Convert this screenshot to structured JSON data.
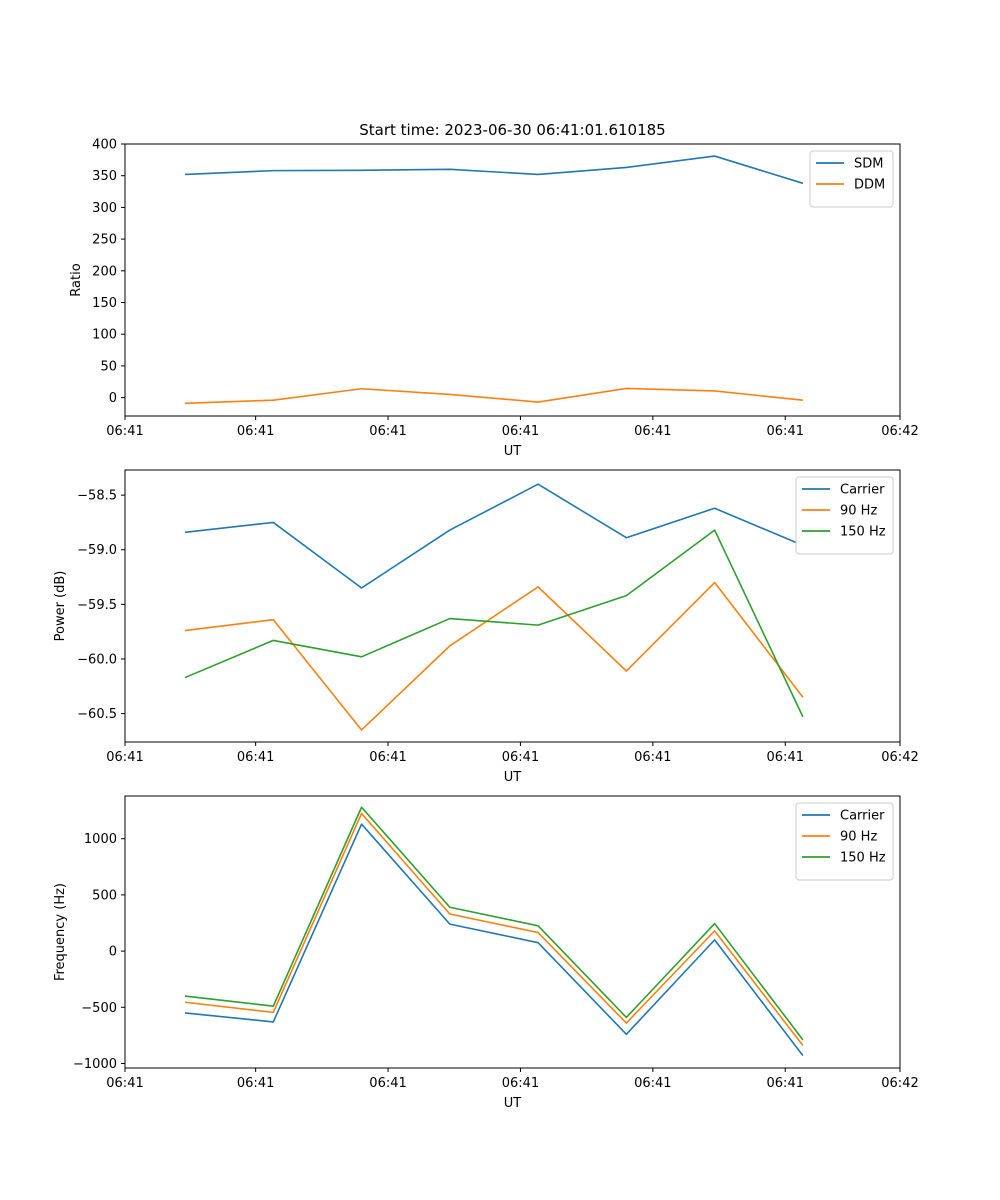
{
  "chart_data": [
    {
      "type": "line",
      "title": "Start time: 2023-06-30 06:41:01.610185",
      "xlabel": "UT",
      "ylabel": "Ratio",
      "x_tick_labels": [
        "06:41",
        "06:41",
        "06:41",
        "06:41",
        "06:41",
        "06:41",
        "06:42"
      ],
      "y_ticks": [
        0,
        50,
        100,
        150,
        200,
        250,
        300,
        350,
        400
      ],
      "y_tick_labels": [
        "0",
        "50",
        "100",
        "150",
        "200",
        "250",
        "300",
        "350",
        "400"
      ],
      "ylim": [
        -29,
        400
      ],
      "x": [
        1,
        2,
        3,
        4,
        5,
        6,
        7,
        8
      ],
      "xlim": [
        0.32,
        9.1
      ],
      "x_tick_positions": [
        0.32,
        1.8,
        3.3,
        4.8,
        6.3,
        7.8,
        9.1
      ],
      "legend_position": "top-right",
      "series": [
        {
          "name": "SDM",
          "color": "#1f77b4",
          "values": [
            352,
            358,
            358.5,
            360,
            352,
            363,
            381,
            338
          ]
        },
        {
          "name": "DDM",
          "color": "#ff7f0e",
          "values": [
            -9,
            -4,
            14,
            5,
            -7,
            14.5,
            10.5,
            -4
          ]
        }
      ]
    },
    {
      "type": "line",
      "title": "",
      "xlabel": "UT",
      "ylabel": "Power (dB)",
      "x_tick_labels": [
        "06:41",
        "06:41",
        "06:41",
        "06:41",
        "06:41",
        "06:41",
        "06:42"
      ],
      "y_ticks": [
        -60.5,
        -60.0,
        -59.5,
        -59.0,
        -58.5
      ],
      "y_tick_labels": [
        "−60.5",
        "−60.0",
        "−59.5",
        "−59.0",
        "−58.5"
      ],
      "ylim": [
        -60.76,
        -58.27
      ],
      "x": [
        1,
        2,
        3,
        4,
        5,
        6,
        7,
        8
      ],
      "xlim": [
        0.32,
        9.1
      ],
      "x_tick_positions": [
        0.32,
        1.8,
        3.3,
        4.8,
        6.3,
        7.8,
        9.1
      ],
      "legend_position": "top-right",
      "series": [
        {
          "name": "Carrier",
          "color": "#1f77b4",
          "values": [
            -58.84,
            -58.75,
            -59.35,
            -58.82,
            -58.4,
            -58.89,
            -58.62,
            -58.96
          ]
        },
        {
          "name": "90 Hz",
          "color": "#ff7f0e",
          "values": [
            -59.74,
            -59.64,
            -60.65,
            -59.88,
            -59.34,
            -60.11,
            -59.3,
            -60.35
          ]
        },
        {
          "name": "150 Hz",
          "color": "#2ca02c",
          "values": [
            -60.17,
            -59.83,
            -59.98,
            -59.63,
            -59.69,
            -59.42,
            -58.82,
            -60.53
          ]
        }
      ]
    },
    {
      "type": "line",
      "title": "",
      "xlabel": "UT",
      "ylabel": "Frequency (Hz)",
      "x_tick_labels": [
        "06:41",
        "06:41",
        "06:41",
        "06:41",
        "06:41",
        "06:41",
        "06:42"
      ],
      "y_ticks": [
        -1000,
        -500,
        0,
        500,
        1000
      ],
      "y_tick_labels": [
        "−1000",
        "−500",
        "0",
        "500",
        "1000"
      ],
      "ylim": [
        -1040,
        1380
      ],
      "x": [
        1,
        2,
        3,
        4,
        5,
        6,
        7,
        8
      ],
      "xlim": [
        0.32,
        9.1
      ],
      "x_tick_positions": [
        0.32,
        1.8,
        3.3,
        4.8,
        6.3,
        7.8,
        9.1
      ],
      "legend_position": "top-right",
      "series": [
        {
          "name": "Carrier",
          "color": "#1f77b4",
          "values": [
            -550,
            -630,
            1130,
            240,
            75,
            -740,
            100,
            -930
          ]
        },
        {
          "name": "90 Hz",
          "color": "#ff7f0e",
          "values": [
            -455,
            -545,
            1225,
            330,
            165,
            -640,
            180,
            -840
          ]
        },
        {
          "name": "150 Hz",
          "color": "#2ca02c",
          "values": [
            -400,
            -490,
            1280,
            390,
            225,
            -590,
            245,
            -790
          ]
        }
      ]
    }
  ]
}
